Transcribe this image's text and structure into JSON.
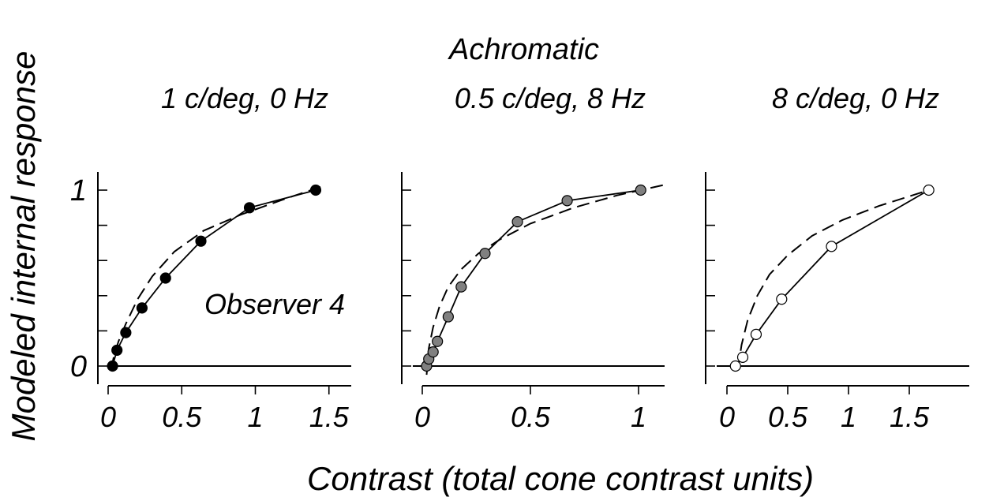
{
  "figure": {
    "title": "Achromatic",
    "xlabel": "Contrast (total cone contrast units)",
    "ylabel": "Modeled internal response"
  },
  "chart_data": [
    {
      "type": "line",
      "title": "1 c/deg, 0 Hz",
      "annotation": "Observer 4",
      "marker_color": "#000000",
      "xlim": [
        0,
        1.5
      ],
      "ylim": [
        -0.1,
        1.1
      ],
      "xticks": [
        "0",
        "0.5",
        "1",
        "1.5"
      ],
      "xtick_values": [
        0,
        0.5,
        1,
        1.5
      ],
      "yticks": [
        "0",
        "1"
      ],
      "ytick_values": [
        0,
        1
      ],
      "ytick_marks": [
        0,
        0.2,
        0.4,
        0.6,
        0.8,
        1
      ],
      "series": [
        {
          "name": "data",
          "style": "solid-markers",
          "x": [
            0.03,
            0.06,
            0.12,
            0.23,
            0.39,
            0.63,
            0.96,
            1.41
          ],
          "y": [
            0.0,
            0.09,
            0.19,
            0.33,
            0.5,
            0.71,
            0.9,
            1.0
          ]
        },
        {
          "name": "fit",
          "style": "dashed",
          "x": [
            0.02,
            0.04,
            0.07,
            0.12,
            0.2,
            0.3,
            0.45,
            0.65,
            0.9,
            1.2,
            1.45
          ],
          "y": [
            -0.02,
            0.06,
            0.14,
            0.24,
            0.38,
            0.51,
            0.65,
            0.77,
            0.86,
            0.95,
            1.02
          ]
        }
      ]
    },
    {
      "type": "line",
      "title": "0.5 c/deg, 8 Hz",
      "marker_color": "#808080",
      "xlim": [
        0,
        1.1
      ],
      "ylim": [
        -0.1,
        1.1
      ],
      "xticks": [
        "0",
        "0.5",
        "1"
      ],
      "xtick_values": [
        0,
        0.5,
        1
      ],
      "yticks": [],
      "ytick_values": [],
      "ytick_marks": [
        0,
        0.2,
        0.4,
        0.6,
        0.8,
        1
      ],
      "series": [
        {
          "name": "data",
          "style": "solid-markers",
          "x": [
            0.02,
            0.03,
            0.05,
            0.07,
            0.12,
            0.18,
            0.29,
            0.44,
            0.67,
            1.01
          ],
          "y": [
            0.0,
            0.04,
            0.08,
            0.14,
            0.28,
            0.45,
            0.64,
            0.82,
            0.94,
            1.0
          ]
        },
        {
          "name": "fit",
          "style": "dashed",
          "x": [
            0.02,
            0.03,
            0.05,
            0.08,
            0.12,
            0.18,
            0.26,
            0.36,
            0.5,
            0.7,
            0.9,
            1.12
          ],
          "y": [
            -0.05,
            0.1,
            0.22,
            0.34,
            0.45,
            0.55,
            0.64,
            0.72,
            0.81,
            0.9,
            0.97,
            1.03
          ]
        }
      ]
    },
    {
      "type": "line",
      "title": "8 c/deg, 0 Hz",
      "marker_color": "#ffffff",
      "xlim": [
        0,
        1.8
      ],
      "ylim": [
        -0.1,
        1.1
      ],
      "xticks": [
        "0",
        "0.5",
        "1",
        "1.5"
      ],
      "xtick_values": [
        0,
        0.5,
        1,
        1.5
      ],
      "yticks": [],
      "ytick_values": [],
      "ytick_marks": [
        0,
        0.2,
        0.4,
        0.6,
        0.8,
        1
      ],
      "series": [
        {
          "name": "data",
          "style": "solid-markers",
          "x": [
            0.07,
            0.13,
            0.24,
            0.45,
            0.86,
            1.66
          ],
          "y": [
            0.0,
            0.05,
            0.18,
            0.38,
            0.68,
            1.0
          ]
        },
        {
          "name": "fit",
          "style": "dashed",
          "x": [
            0.09,
            0.12,
            0.17,
            0.25,
            0.35,
            0.5,
            0.7,
            0.95,
            1.25,
            1.66
          ],
          "y": [
            -0.02,
            0.12,
            0.26,
            0.4,
            0.52,
            0.63,
            0.74,
            0.83,
            0.91,
            1.0
          ]
        }
      ]
    }
  ]
}
